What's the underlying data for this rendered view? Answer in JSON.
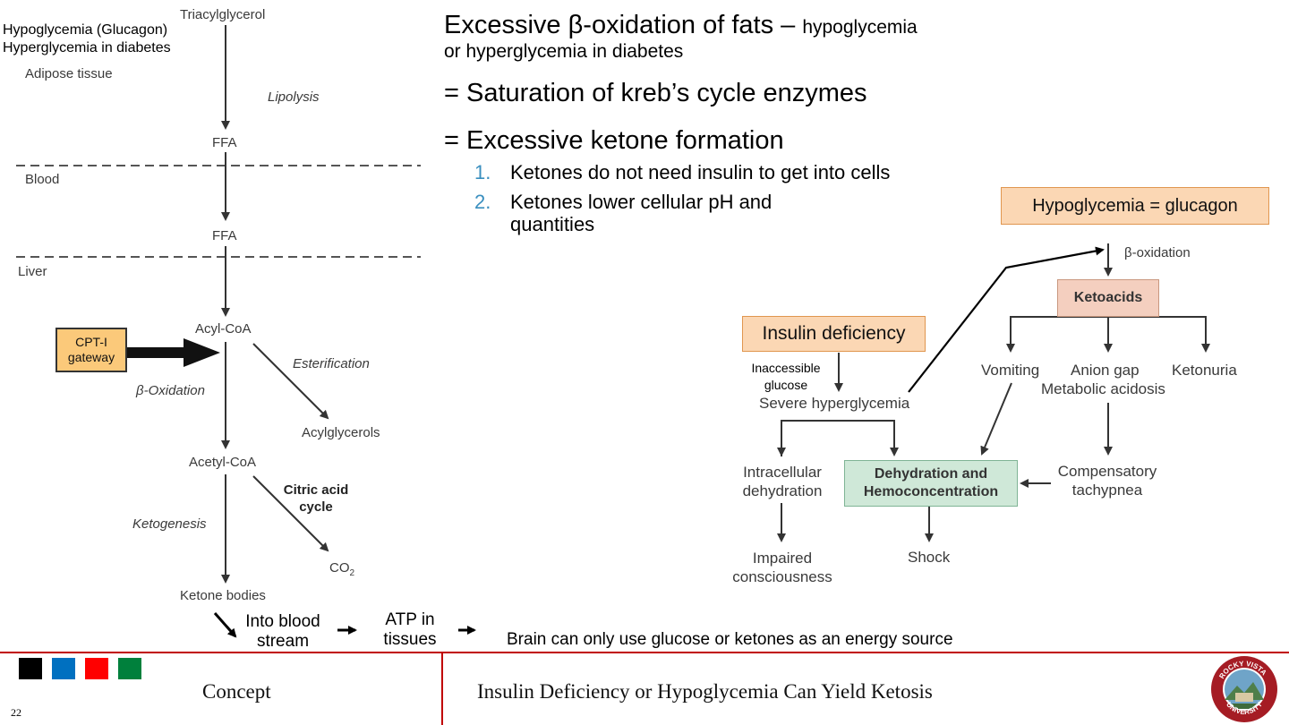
{
  "left_figure": {
    "note_line1": "Hypoglycemia (Glucagon)",
    "note_line2": "Hyperglycemia in diabetes",
    "triacylglycerol": "Triacylglycerol",
    "adipose_tissue": "Adipose tissue",
    "lipolysis": "Lipolysis",
    "ffa_1": "FFA",
    "blood": "Blood",
    "ffa_2": "FFA",
    "liver": "Liver",
    "acyl_coa": "Acyl-CoA",
    "cpt_line1": "CPT-I",
    "cpt_line2": "gateway",
    "esterification": "Esterification",
    "beta_oxidation": "β-Oxidation",
    "acylglycerols": "Acylglycerols",
    "acetyl_coa": "Acetyl-CoA",
    "citric_line1": "Citric acid",
    "citric_line2": "cycle",
    "ketogenesis": "Ketogenesis",
    "co2": "CO",
    "co2_sub": "2",
    "ketone_bodies": "Ketone bodies"
  },
  "bottom_flow": {
    "into_blood_line1": "Into blood",
    "into_blood_line2": "stream",
    "atp_line1": "ATP in",
    "atp_line2": "tissues",
    "brain": "Brain can only use glucose or ketones as an energy source"
  },
  "text_block": {
    "title_main": "Excessive β-oxidation of fats – ",
    "title_small": "hypoglycemia",
    "title_line2": "or hyperglycemia in diabetes",
    "line2": "= Saturation of kreb’s cycle enzymes",
    "line3": "= Excessive ketone formation",
    "items": [
      {
        "num": "1.",
        "text": "Ketones do not need insulin to get into cells"
      },
      {
        "num": "2.",
        "text": "Ketones lower cellular pH and",
        "text2": "quantities"
      }
    ]
  },
  "right_figure": {
    "hypoglycemia_box": "Hypoglycemia  = glucagon",
    "beta_oxidation": "β-oxidation",
    "ketoacids": "Ketoacids",
    "insulin_deficiency": "Insulin deficiency",
    "inaccessible_line1": "Inaccessible",
    "inaccessible_line2": "glucose",
    "severe_hyperglycemia": "Severe hyperglycemia",
    "vomiting": "Vomiting",
    "anion_gap": "Anion gap",
    "metabolic_acidosis": "Metabolic acidosis",
    "ketonuria": "Ketonuria",
    "intracellular_line1": "Intracellular",
    "intracellular_line2": "dehydration",
    "dehydration_line1": "Dehydration and",
    "dehydration_line2": "Hemoconcentration",
    "compensatory_line1": "Compensatory",
    "compensatory_line2": "tachypnea",
    "impaired_line1": "Impaired",
    "impaired_line2": "consciousness",
    "shock": "Shock"
  },
  "footer": {
    "left_label": "Concept",
    "title": "Insulin Deficiency or Hypoglycemia Can Yield Ketosis",
    "page_number": "22",
    "squares": [
      "#000000",
      "#0070c0",
      "#ff0000",
      "#00803c"
    ],
    "logo_text": "ROCKY VISTA UNIVERSITY",
    "accent": "#c00000"
  }
}
